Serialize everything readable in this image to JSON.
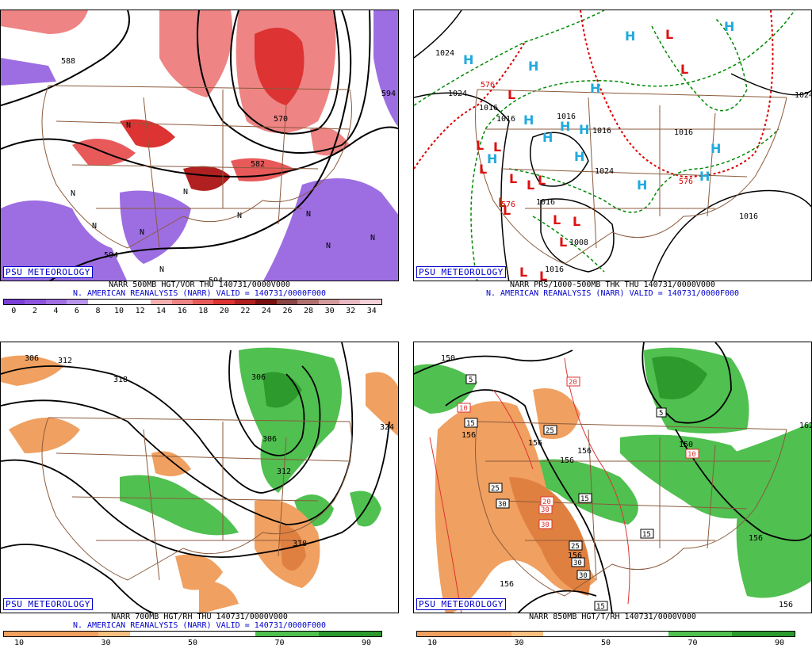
{
  "panels": [
    {
      "badge": "PSU METEOROLOGY",
      "line1": "NARR 500MB HGT/VOR THU 140731/0000V000",
      "line2": "N. AMERICAN REANALYSIS (NARR) VALID = 140731/0000F000",
      "colorbar": {
        "colors": [
          "#7a3fd6",
          "#8c55dc",
          "#a070e2",
          "#b995ea",
          "#ffffff",
          "#ffffff",
          "#ffffff",
          "#f4b0b0",
          "#ee8484",
          "#e85a5a",
          "#dd3333",
          "#b02020",
          "#7a1010",
          "#8a4545",
          "#b07070",
          "#d29a9a",
          "#e8b8c0",
          "#f4d0d8"
        ],
        "ticks": [
          "0",
          "2",
          "4",
          "6",
          "8",
          "10",
          "12",
          "14",
          "16",
          "18",
          "20",
          "22",
          "24",
          "26",
          "28",
          "30",
          "32",
          "34"
        ]
      },
      "labels": [
        "588",
        "594",
        "594",
        "594",
        "582",
        "570",
        "N",
        "N",
        "N",
        "N",
        "N",
        "N",
        "N",
        "N",
        "N",
        "N"
      ]
    },
    {
      "badge": "PSU METEOROLOGY",
      "line1": "NARR PRS/1000-500MB THK THU 140731/0000V000",
      "line2": "N. AMERICAN REANALYSIS (NARR) VALID = 140731/0000F000",
      "labels": [
        "1024",
        "1024",
        "1016",
        "1016",
        "1016",
        "1016",
        "1016",
        "1016",
        "1024",
        "1016",
        "1008",
        "1016",
        "1016",
        "1024",
        "576",
        "576",
        "576"
      ],
      "highs": [
        "H",
        "H",
        "H",
        "H",
        "H",
        "H",
        "H",
        "H",
        "H",
        "H",
        "H",
        "H",
        "H",
        "H"
      ],
      "lows": [
        "L",
        "L",
        "L",
        "L",
        "L",
        "L",
        "L",
        "L",
        "L",
        "L",
        "L",
        "L",
        "L",
        "L",
        "L",
        "L"
      ]
    },
    {
      "badge": "PSU METEOROLOGY",
      "line1": "NARR 700MB HGT/RH THU 140731/0000V000",
      "line2": "N. AMERICAN REANALYSIS (NARR) VALID = 140731/0000F000",
      "colorbar": {
        "colors": [
          "#f0a060",
          "#f0a060",
          "#f0a060",
          "#f5c080",
          "#ffffff",
          "#ffffff",
          "#ffffff",
          "#ffffff",
          "#50c050",
          "#50c050",
          "#2c9a2c",
          "#2c9a2c"
        ],
        "ticks": [
          "10",
          "30",
          "50",
          "70",
          "90"
        ]
      },
      "labels": [
        "306",
        "312",
        "318",
        "306",
        "306",
        "312",
        "318",
        "324"
      ]
    },
    {
      "badge": "PSU METEOROLOGY",
      "line1": "NARR 850MB HGT/T/RH 140731/0000V000",
      "line2": "",
      "colorbar": {
        "colors": [
          "#f0a060",
          "#f0a060",
          "#f0a060",
          "#f5c080",
          "#ffffff",
          "#ffffff",
          "#ffffff",
          "#ffffff",
          "#50c050",
          "#50c050",
          "#2c9a2c",
          "#2c9a2c"
        ],
        "ticks": [
          "10",
          "30",
          "50",
          "70",
          "90"
        ]
      },
      "labels": [
        "150",
        "156",
        "156",
        "156",
        "156",
        "156",
        "156",
        "150",
        "156",
        "156",
        "162",
        "5",
        "5",
        "10",
        "10",
        "15",
        "15",
        "15",
        "15",
        "20",
        "25",
        "25",
        "25",
        "30",
        "30",
        "30",
        "30",
        "30",
        "20"
      ]
    }
  ]
}
